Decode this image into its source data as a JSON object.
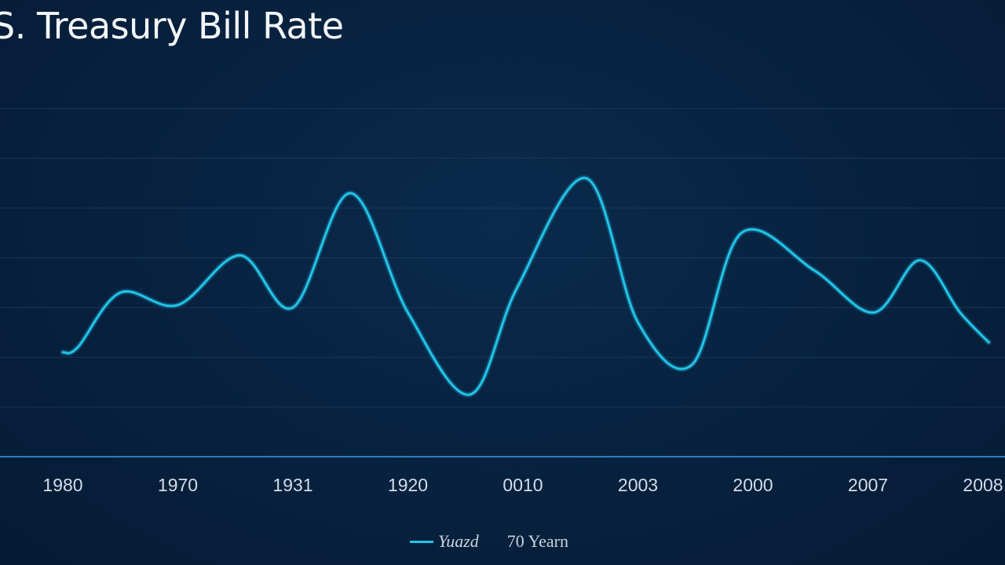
{
  "chart_data": {
    "type": "line",
    "title": "S. Treasury Bill Rate",
    "xlabel": "",
    "ylabel": "",
    "grid": true,
    "legend_position": "bottom-center",
    "x_tick_labels": [
      "1980",
      "1970",
      "1931",
      "1920",
      "0010",
      "2003",
      "2000",
      "2007",
      "2008"
    ],
    "x": [
      0,
      0.13,
      0.5,
      1,
      1.54,
      2,
      2.5,
      3,
      3.54,
      3.95,
      4.55,
      5,
      5.47,
      5.9,
      6.53,
      7.05,
      7.45,
      7.8,
      8.05
    ],
    "series": [
      {
        "name": "Yuazd",
        "color": "#22c4e8",
        "values": [
          2.1,
          2.2,
          3.3,
          3.05,
          4.05,
          3.0,
          5.3,
          2.9,
          1.25,
          3.4,
          5.6,
          2.7,
          1.85,
          4.5,
          3.75,
          2.9,
          3.95,
          2.9,
          2.3
        ]
      }
    ],
    "ylim": [
      0,
      8
    ]
  },
  "legend": {
    "series_label": "Yuazd",
    "extra_label": "70 Yearn"
  },
  "colors": {
    "background": "#07213e",
    "line": "#22c4e8",
    "axis": "#2a7fb8",
    "grid": "#1a3756"
  }
}
